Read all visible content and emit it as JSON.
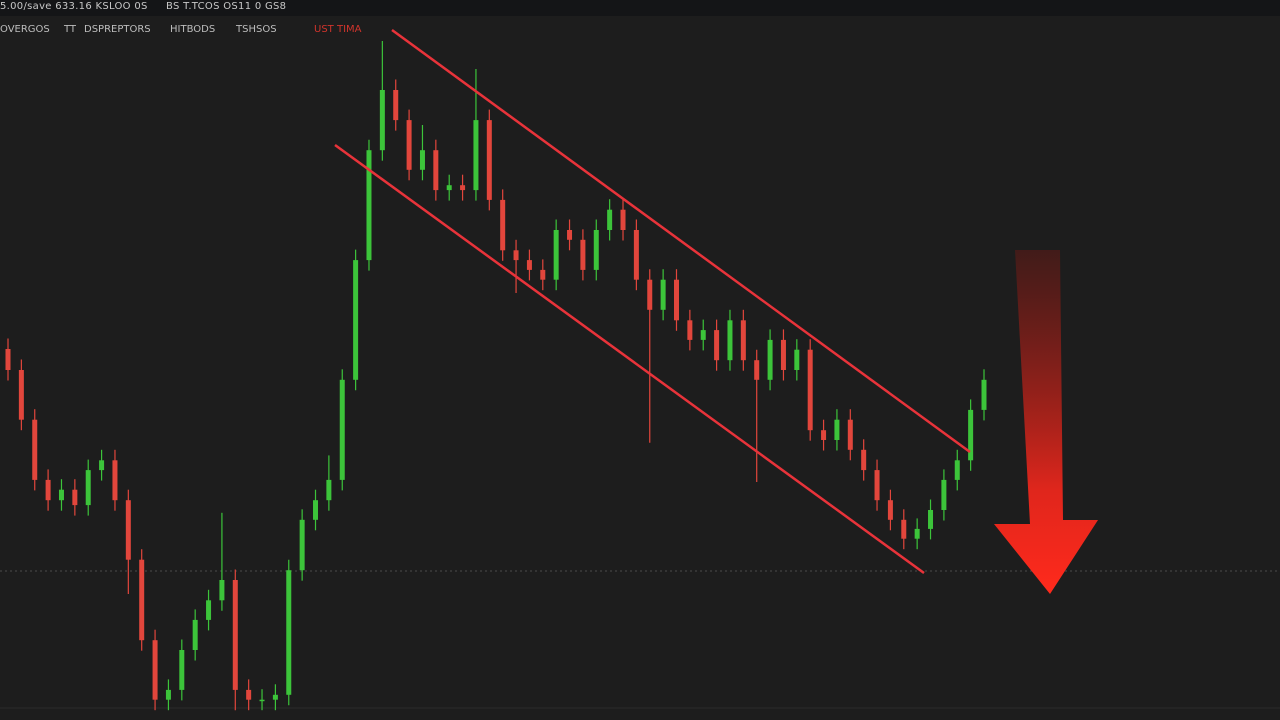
{
  "chart_data": {
    "type": "candlestick",
    "header": [
      "5.00/save 633.16 KSLOO 0S",
      "BS T.TCOS OS11 0 GS8"
    ],
    "indicators": [
      "OVERGOS",
      "TT",
      "DSPREPTORS",
      "HITBODS",
      "TSHSOS",
      "UST TIMA"
    ],
    "ylim": [
      0,
      100
    ],
    "up_color": "#3cc43a",
    "down_color": "#e2463c",
    "open": [
      52.0,
      49.0,
      41.9,
      33.3,
      30.4,
      31.9,
      29.7,
      34.7,
      36.1,
      30.4,
      21.9,
      10.4,
      1.9,
      3.3,
      9.0,
      13.3,
      16.1,
      19.0,
      3.3,
      1.9,
      1.9,
      2.6,
      20.4,
      27.6,
      30.4,
      33.3,
      47.6,
      64.7,
      80.4,
      89.0,
      84.7,
      77.6,
      80.4,
      74.7,
      75.4,
      74.7,
      84.7,
      73.3,
      66.1,
      64.7,
      63.3,
      61.9,
      69.0,
      67.6,
      63.3,
      69.0,
      71.9,
      69.0,
      61.9,
      57.6,
      61.9,
      56.1,
      53.3,
      54.7,
      50.4,
      56.1,
      50.4,
      47.6,
      53.3,
      49.0,
      51.9,
      40.4,
      39.0,
      41.9,
      37.6,
      34.7,
      30.4,
      27.6,
      24.9,
      26.3,
      29.0,
      33.3,
      36.1,
      43.3
    ],
    "high": [
      53.5,
      50.5,
      43.4,
      34.8,
      33.4,
      33.4,
      36.2,
      37.6,
      37.6,
      31.9,
      23.4,
      11.9,
      4.8,
      10.5,
      14.8,
      17.6,
      28.6,
      20.5,
      4.8,
      3.4,
      4.1,
      21.9,
      29.1,
      31.9,
      36.8,
      49.1,
      66.2,
      81.9,
      96.0,
      90.5,
      86.2,
      84.0,
      81.9,
      76.9,
      76.9,
      92.0,
      86.2,
      74.8,
      67.6,
      66.2,
      64.8,
      70.5,
      70.5,
      69.1,
      70.5,
      73.4,
      73.4,
      70.5,
      63.4,
      63.4,
      63.4,
      57.6,
      56.2,
      56.2,
      57.6,
      57.6,
      51.9,
      54.8,
      54.8,
      53.4,
      53.4,
      41.9,
      43.4,
      43.4,
      39.1,
      36.2,
      31.9,
      29.1,
      27.8,
      30.5,
      34.8,
      37.6,
      44.8,
      49.1
    ],
    "low": [
      47.5,
      40.4,
      31.8,
      28.9,
      28.9,
      28.2,
      28.2,
      33.2,
      28.9,
      17.0,
      8.9,
      0.4,
      0.4,
      1.8,
      7.5,
      11.8,
      14.6,
      0.4,
      0.4,
      0.4,
      0.4,
      1.1,
      18.9,
      26.1,
      28.9,
      31.8,
      46.1,
      63.2,
      78.9,
      83.2,
      76.1,
      76.1,
      73.2,
      73.2,
      73.2,
      73.2,
      71.8,
      64.6,
      60.0,
      61.8,
      60.4,
      60.4,
      66.1,
      61.8,
      61.8,
      67.5,
      67.5,
      60.4,
      38.6,
      56.1,
      54.6,
      51.8,
      51.8,
      48.9,
      48.9,
      48.9,
      33.0,
      46.1,
      47.5,
      47.5,
      38.9,
      37.5,
      37.5,
      36.1,
      33.2,
      28.9,
      26.1,
      23.4,
      23.4,
      24.8,
      27.5,
      31.8,
      34.6,
      41.8
    ],
    "close": [
      49.0,
      41.9,
      33.3,
      30.4,
      31.9,
      29.7,
      34.7,
      36.1,
      30.4,
      21.9,
      10.4,
      1.9,
      3.3,
      9.0,
      13.3,
      16.1,
      19.0,
      3.3,
      1.9,
      1.9,
      2.6,
      20.4,
      27.6,
      30.4,
      33.3,
      47.6,
      64.7,
      80.4,
      89.0,
      84.7,
      77.6,
      80.4,
      74.7,
      75.4,
      74.7,
      84.7,
      73.3,
      66.1,
      64.7,
      63.3,
      61.9,
      69.0,
      67.6,
      63.3,
      69.0,
      71.9,
      69.0,
      61.9,
      57.6,
      61.9,
      56.1,
      53.3,
      54.7,
      50.4,
      56.1,
      50.4,
      47.6,
      53.3,
      49.0,
      51.9,
      40.4,
      39.0,
      41.9,
      37.6,
      34.7,
      30.4,
      27.6,
      24.9,
      26.3,
      29.0,
      33.3,
      36.1,
      43.3,
      47.6
    ]
  }
}
